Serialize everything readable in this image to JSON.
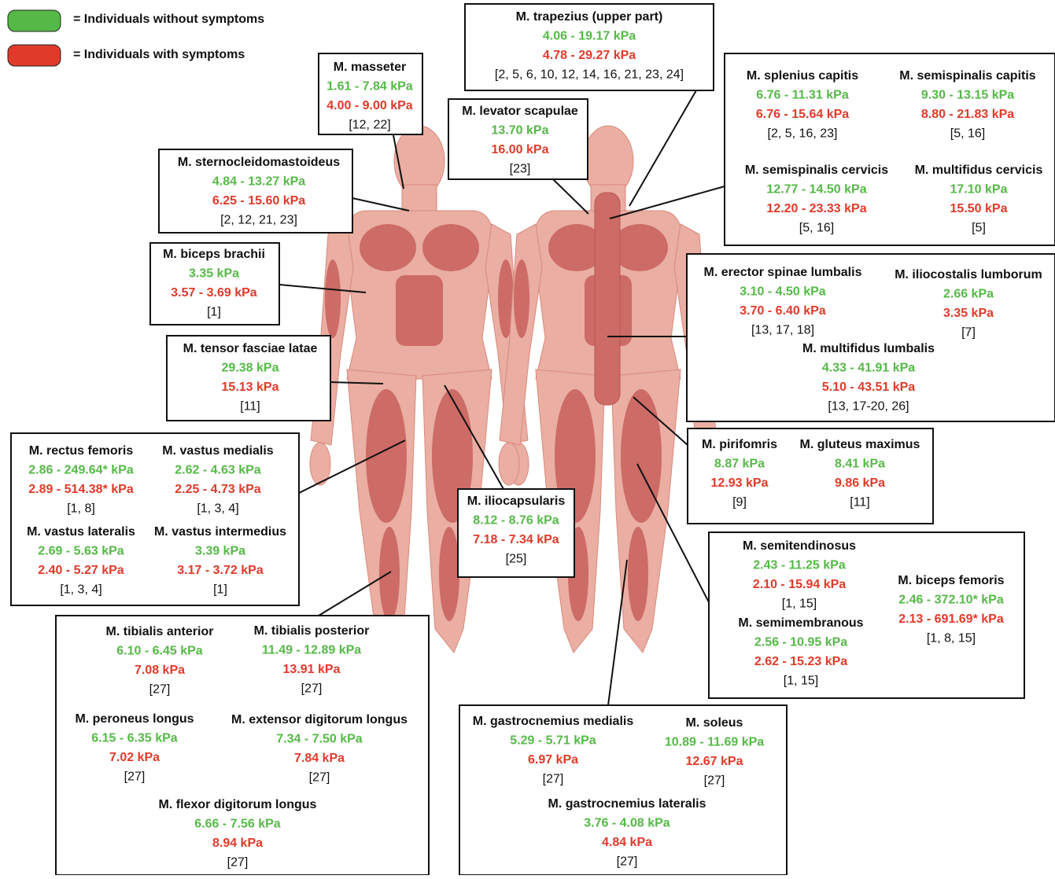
{
  "legend": [
    {
      "label": "= Individuals without symptoms"
    },
    {
      "label": "= Individuals with symptoms"
    }
  ],
  "boxes": [
    {
      "muscles": [
        {
          "name": "M. trapezius (upper part)",
          "without": "4.06 - 19.17 kPa",
          "with": "4.78 - 29.27 kPa",
          "refs": "[2, 5, 6, 10, 12, 14, 16, 21, 23,  24]"
        }
      ]
    },
    {
      "muscles": [
        {
          "name": "M. masseter",
          "without": "1.61 - 7.84 kPa",
          "with": "4.00 - 9.00 kPa",
          "refs": "[12, 22]"
        }
      ]
    },
    {
      "muscles": [
        {
          "name": "M. levator scapulae",
          "without": "13.70 kPa",
          "with": "16.00 kPa",
          "refs": "[23]"
        }
      ]
    },
    {
      "muscles": [
        {
          "name": "M. splenius capitis",
          "without": "6.76 - 11.31 kPa",
          "with": "6.76 - 15.64 kPa",
          "refs": "[2, 5, 16, 23]"
        },
        {
          "name": "M. semispinalis capitis",
          "without": "9.30 - 13.15 kPa",
          "with": "8.80 - 21.83 kPa",
          "refs": "[5, 16]"
        },
        {
          "name": "M. semispinalis cervicis",
          "without": "12.77 - 14.50 kPa",
          "with": "12.20 - 23.33 kPa",
          "refs": "[5, 16]"
        },
        {
          "name": "M. multifidus cervicis",
          "without": "17.10 kPa",
          "with": "15.50 kPa",
          "refs": "[5]"
        }
      ]
    },
    {
      "muscles": [
        {
          "name": "M. sternocleidomastoideus",
          "without": "4.84 - 13.27 kPa",
          "with": "6.25 - 15.60 kPa",
          "refs": "[2, 12, 21, 23]"
        }
      ]
    },
    {
      "muscles": [
        {
          "name": "M. biceps brachii",
          "without": "3.35 kPa",
          "with": "3.57 - 3.69 kPa",
          "refs": "[1]"
        }
      ]
    },
    {
      "muscles": [
        {
          "name": "M. erector spinae lumbalis",
          "without": "3.10 - 4.50 kPa",
          "with": "3.70 - 6.40 kPa",
          "refs": "[13, 17, 18]"
        },
        {
          "name": "M. iliocostalis lumborum",
          "without": "2.66 kPa",
          "with": "3.35 kPa",
          "refs": "[7]"
        },
        {
          "name": "M. multifidus lumbalis",
          "without": "4.33 - 41.91 kPa",
          "with": "5.10 - 43.51 kPa",
          "refs": "[13, 17-20, 26]"
        }
      ]
    },
    {
      "muscles": [
        {
          "name": "M. tensor fasciae latae",
          "without": "29.38 kPa",
          "with": "15.13 kPa",
          "refs": "[11]"
        }
      ]
    },
    {
      "muscles": [
        {
          "name": "M. rectus femoris",
          "without": "2.86 - 249.64* kPa",
          "with": "2.89 - 514.38* kPa",
          "refs": "[1, 8]"
        },
        {
          "name": "M. vastus medialis",
          "without": "2.62 - 4.63 kPa",
          "with": "2.25 - 4.73 kPa",
          "refs": "[1, 3, 4]"
        },
        {
          "name": "M. vastus lateralis",
          "without": "2.69 - 5.63 kPa",
          "with": "2.40 - 5.27 kPa",
          "refs": "[1, 3, 4]"
        },
        {
          "name": "M. vastus intermedius",
          "without": "3.39 kPa",
          "with": "3.17 - 3.72 kPa",
          "refs": "[1]"
        }
      ]
    },
    {
      "muscles": [
        {
          "name": "M. pirifomris",
          "without": "8.87 kPa",
          "with": "12.93 kPa",
          "refs": "[9]"
        },
        {
          "name": "M. gluteus maximus",
          "without": "8.41 kPa",
          "with": "9.86 kPa",
          "refs": "[11]"
        }
      ]
    },
    {
      "muscles": [
        {
          "name": "M. iliocapsularis",
          "without": "8.12 - 8.76 kPa",
          "with": "7.18 - 7.34 kPa",
          "refs": "[25]"
        }
      ]
    },
    {
      "muscles": [
        {
          "name": "M. semitendinosus",
          "without": "2.43 - 11.25 kPa",
          "with": "2.10 - 15.94 kPa",
          "refs": "[1, 15]"
        },
        {
          "name": "M. semimembranous",
          "without": "2.56 - 10.95 kPa",
          "with": "2.62 - 15.23 kPa",
          "refs": "[1, 15]"
        },
        {
          "name": "M. biceps femoris",
          "without": "2.46 - 372.10* kPa",
          "with": "2.13 - 691.69* kPa",
          "refs": "[1, 8, 15]"
        }
      ]
    },
    {
      "muscles": [
        {
          "name": "M. tibialis anterior",
          "without": "6.10 - 6.45 kPa",
          "with": "7.08 kPa",
          "refs": "[27]"
        },
        {
          "name": "M. tibialis posterior",
          "without": "11.49 - 12.89 kPa",
          "with": "13.91 kPa",
          "refs": "[27]"
        },
        {
          "name": "M. peroneus longus",
          "without": "6.15 - 6.35 kPa",
          "with": "7.02 kPa",
          "refs": "[27]"
        },
        {
          "name": "M. extensor digitorum longus",
          "without": "7.34 - 7.50 kPa",
          "with": "7.84 kPa",
          "refs": "[27]"
        },
        {
          "name": "M. flexor digitorum longus",
          "without": "6.66 - 7.56 kPa",
          "with": "8.94 kPa",
          "refs": "[27]"
        }
      ]
    },
    {
      "muscles": [
        {
          "name": "M. gastrocnemius medialis",
          "without": "5.29 - 5.71 kPa",
          "with": "6.97 kPa",
          "refs": "[27]"
        },
        {
          "name": "M. soleus",
          "without": "10.89 - 11.69 kPa",
          "with": "12.67 kPa",
          "refs": "[27]"
        },
        {
          "name": "M. gastrocnemius lateralis",
          "without": "3.76 - 4.08 kPa",
          "with": "4.84 kPa",
          "refs": "[27]"
        }
      ]
    }
  ]
}
